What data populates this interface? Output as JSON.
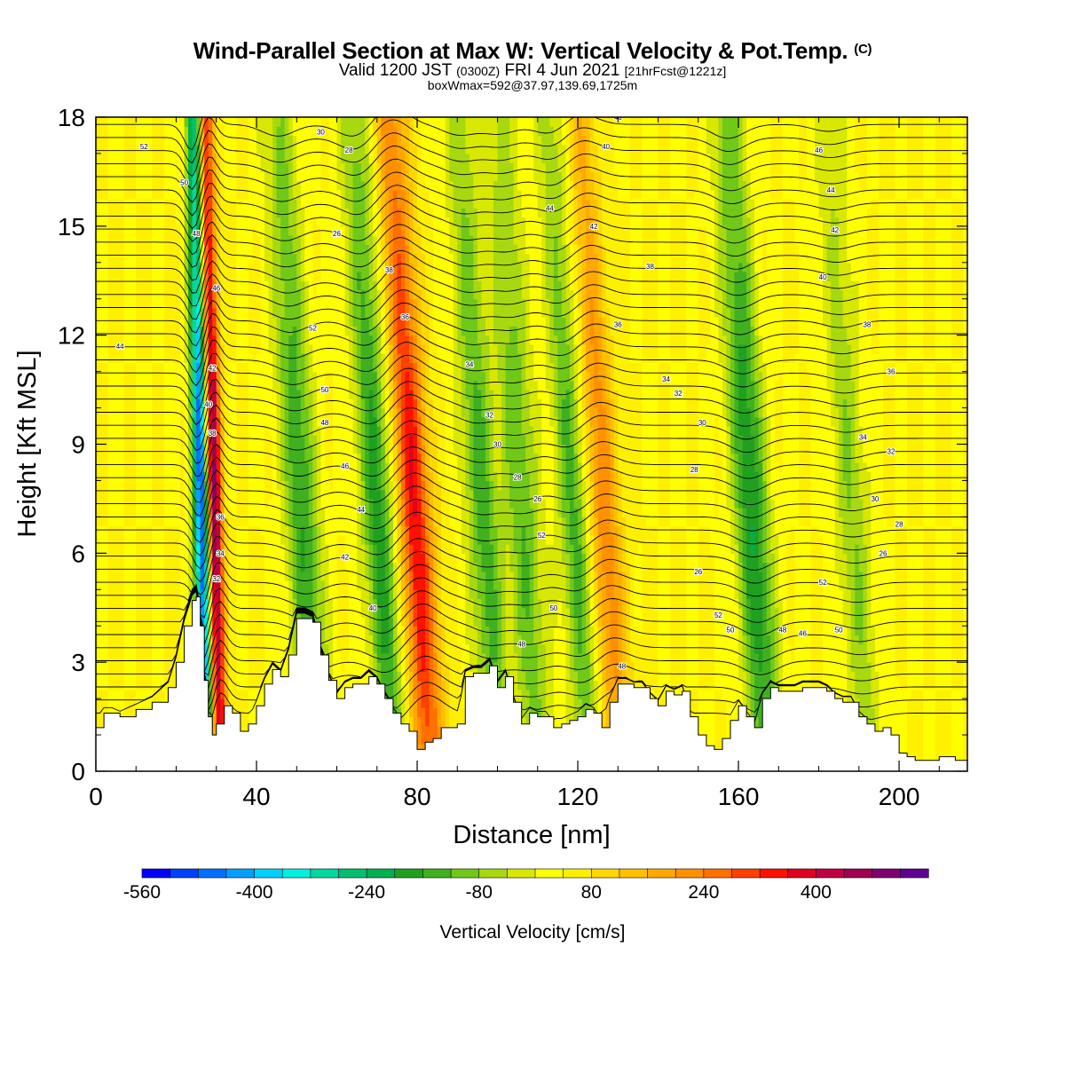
{
  "header": {
    "title_main": "Wind-Parallel Section at Max W: Vertical Velocity & Pot.Temp.",
    "title_copyright": "(C)",
    "valid_prefix": "Valid 1200 JST",
    "valid_utc": "(0300Z)",
    "valid_date": "FRI 4 Jun 2021",
    "forecast_info": "[21hrFcst@1221z]",
    "box_info": "boxWmax=592@37.97,139.69,1725m"
  },
  "chart_data": {
    "type": "heatmap",
    "xlabel": "Distance [nm]",
    "ylabel": "Height [Kft MSL]",
    "xlim": [
      0,
      217
    ],
    "ylim": [
      0,
      18
    ],
    "x_ticks": [
      0,
      40,
      80,
      120,
      160,
      200
    ],
    "y_ticks": [
      0,
      3,
      6,
      9,
      12,
      15,
      18
    ],
    "colorbar": {
      "label": "Vertical Velocity [cm/s]",
      "tick_labels": [
        "-560",
        "-400",
        "-240",
        "-80",
        "80",
        "240",
        "400"
      ],
      "tick_values": [
        -560,
        -400,
        -240,
        -80,
        80,
        240,
        400
      ],
      "range": [
        -560,
        560
      ],
      "colors": [
        "#0000ff",
        "#0040ff",
        "#0070ff",
        "#00a0ff",
        "#00d0ff",
        "#00f0e0",
        "#00d8a0",
        "#00c070",
        "#00b050",
        "#20a020",
        "#40b020",
        "#70c818",
        "#a8d810",
        "#d8e800",
        "#ffff00",
        "#fff000",
        "#ffd800",
        "#ffc000",
        "#ffa800",
        "#ff9000",
        "#ff7000",
        "#ff4000",
        "#ff1000",
        "#e00020",
        "#c00040",
        "#a00050",
        "#800070",
        "#600090"
      ]
    },
    "w_features": [
      {
        "x": 27,
        "w": -560
      },
      {
        "x": 30,
        "w": 480
      },
      {
        "x": 53,
        "w": -200
      },
      {
        "x": 72,
        "w": -220
      },
      {
        "x": 81,
        "w": 320
      },
      {
        "x": 98,
        "w": -180
      },
      {
        "x": 108,
        "w": -160
      },
      {
        "x": 121,
        "w": -180
      },
      {
        "x": 128,
        "w": 200
      },
      {
        "x": 165,
        "w": -240
      },
      {
        "x": 190,
        "w": -120
      }
    ],
    "theta_contours": {
      "spacing_K": 2,
      "labels": [
        "52",
        "50",
        "48",
        "46",
        "44",
        "42",
        "40",
        "38",
        "36",
        "34",
        "32",
        "30",
        "28",
        "26"
      ]
    },
    "terrain": {
      "x": [
        0,
        2,
        4,
        6,
        10,
        14,
        18,
        20,
        22,
        24,
        25,
        26,
        27,
        28,
        29,
        30,
        32,
        34,
        36,
        38,
        40,
        42,
        44,
        46,
        48,
        50,
        52,
        54,
        56,
        58,
        60,
        62,
        64,
        66,
        68,
        70,
        72,
        74,
        76,
        78,
        80,
        82,
        84,
        86,
        88,
        90,
        92,
        94,
        96,
        98,
        100,
        102,
        104,
        106,
        108,
        110,
        112,
        114,
        116,
        118,
        120,
        122,
        124,
        126,
        128,
        130,
        132,
        134,
        136,
        138,
        140,
        142,
        144,
        146,
        148,
        150,
        152,
        154,
        156,
        158,
        160,
        162,
        164,
        166,
        168,
        170,
        172,
        174,
        176,
        178,
        180,
        182,
        184,
        186,
        188,
        190,
        192,
        194,
        196,
        198,
        200,
        202,
        204,
        206,
        208,
        210,
        212,
        214,
        216,
        217
      ],
      "z": [
        1.2,
        1.6,
        1.6,
        1.5,
        1.7,
        1.9,
        2.3,
        3.0,
        4.0,
        4.7,
        4.8,
        4.0,
        2.5,
        1.5,
        1.0,
        1.3,
        1.8,
        1.6,
        1.1,
        1.3,
        1.8,
        2.4,
        2.8,
        2.6,
        3.2,
        4.2,
        4.2,
        4.1,
        3.2,
        2.5,
        2.0,
        2.3,
        2.4,
        2.4,
        2.6,
        2.4,
        2.0,
        1.6,
        1.3,
        1.1,
        0.6,
        0.8,
        0.9,
        1.2,
        1.2,
        1.3,
        2.6,
        2.7,
        2.7,
        2.9,
        2.3,
        2.6,
        1.9,
        1.3,
        1.6,
        1.5,
        1.5,
        1.2,
        1.3,
        1.4,
        1.5,
        1.7,
        1.6,
        1.2,
        1.9,
        2.4,
        2.4,
        2.3,
        2.3,
        2.0,
        1.8,
        2.2,
        2.1,
        2.2,
        1.5,
        1.0,
        0.7,
        0.6,
        0.9,
        1.4,
        1.8,
        1.5,
        1.2,
        2.0,
        2.3,
        2.2,
        2.2,
        2.2,
        2.3,
        2.3,
        2.3,
        2.2,
        2.0,
        1.9,
        1.9,
        1.5,
        1.3,
        1.1,
        1.2,
        1.0,
        0.5,
        0.4,
        0.3,
        0.3,
        0.3,
        0.4,
        0.4,
        0.3,
        0.3,
        0.3
      ]
    }
  }
}
